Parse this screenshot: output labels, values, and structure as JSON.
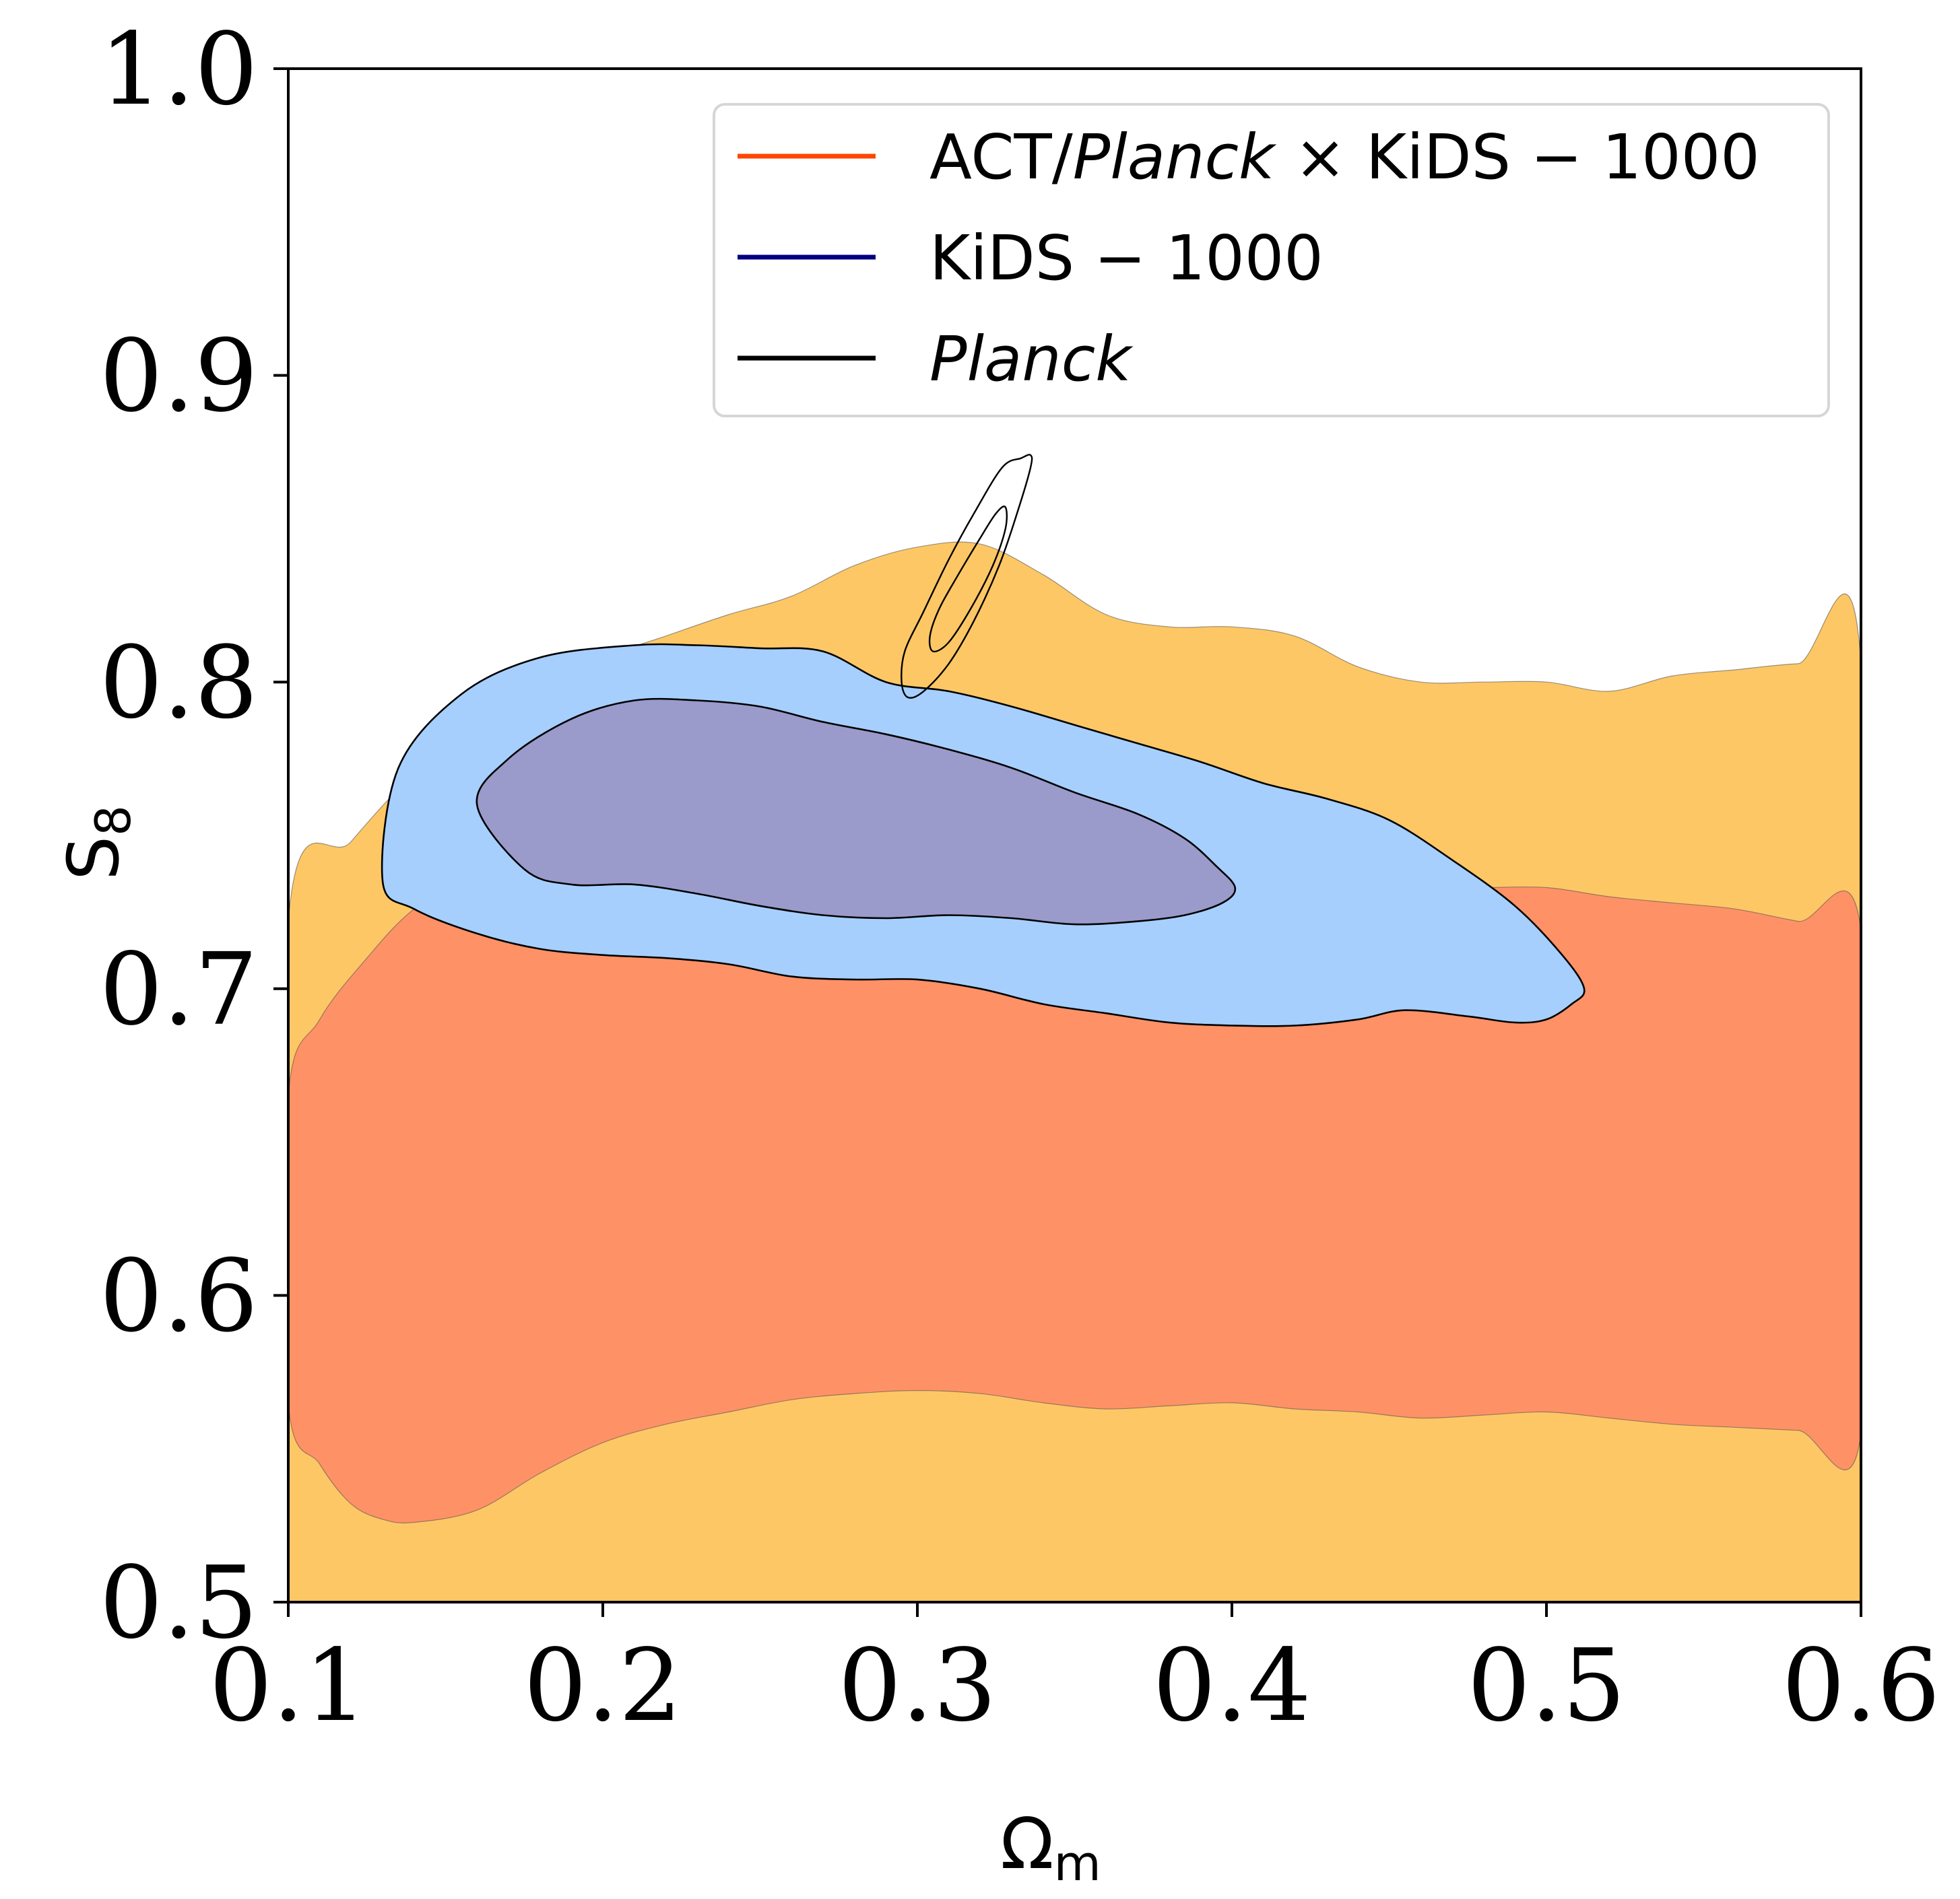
{
  "chart_data": {
    "type": "contour",
    "xlabel_main": "Ω",
    "xlabel_sub": "m",
    "ylabel_main": "S",
    "ylabel_sub": "8",
    "xlim": [
      0.1,
      0.6
    ],
    "ylim": [
      0.5,
      1.0
    ],
    "xticks": [
      "0.1",
      "0.2",
      "0.3",
      "0.4",
      "0.5",
      "0.6"
    ],
    "yticks": [
      "0.5",
      "0.6",
      "0.7",
      "0.8",
      "0.9",
      "1.0"
    ],
    "grid": false,
    "legend_position": "top-right",
    "legend": [
      {
        "name_parts": [
          "ACT/",
          "Planck",
          " × KiDS − 1000"
        ],
        "italic_part": 1,
        "color": "#ff4500"
      },
      {
        "name_parts": [
          "KiDS − 1000"
        ],
        "italic_part": -1,
        "color": "#000080"
      },
      {
        "name_parts": [
          "Planck"
        ],
        "italic_part": 0,
        "color": "#000000"
      }
    ],
    "series": [
      {
        "name": "ACT/Planck × KiDS-1000",
        "level": "95%",
        "fill": "#fec765",
        "outline": [
          [
            0.1,
            0.722
          ],
          [
            0.12,
            0.748
          ],
          [
            0.14,
            0.77
          ],
          [
            0.16,
            0.785
          ],
          [
            0.18,
            0.798
          ],
          [
            0.2,
            0.808
          ],
          [
            0.22,
            0.815
          ],
          [
            0.24,
            0.822
          ],
          [
            0.26,
            0.828
          ],
          [
            0.28,
            0.838
          ],
          [
            0.3,
            0.844
          ],
          [
            0.32,
            0.845
          ],
          [
            0.34,
            0.835
          ],
          [
            0.36,
            0.822
          ],
          [
            0.38,
            0.818
          ],
          [
            0.4,
            0.818
          ],
          [
            0.42,
            0.815
          ],
          [
            0.44,
            0.805
          ],
          [
            0.46,
            0.8
          ],
          [
            0.48,
            0.8
          ],
          [
            0.5,
            0.8
          ],
          [
            0.52,
            0.797
          ],
          [
            0.54,
            0.802
          ],
          [
            0.56,
            0.804
          ],
          [
            0.58,
            0.806
          ],
          [
            0.6,
            0.806
          ],
          [
            0.6,
            0.5
          ],
          [
            0.1,
            0.5
          ]
        ]
      },
      {
        "name": "ACT/Planck × KiDS-1000",
        "level": "68%",
        "fill": "#ff9166",
        "outline": [
          [
            0.1,
            0.665
          ],
          [
            0.11,
            0.69
          ],
          [
            0.125,
            0.71
          ],
          [
            0.14,
            0.726
          ],
          [
            0.16,
            0.738
          ],
          [
            0.18,
            0.742
          ],
          [
            0.2,
            0.74
          ],
          [
            0.22,
            0.742
          ],
          [
            0.24,
            0.748
          ],
          [
            0.26,
            0.752
          ],
          [
            0.28,
            0.755
          ],
          [
            0.3,
            0.757
          ],
          [
            0.32,
            0.756
          ],
          [
            0.34,
            0.752
          ],
          [
            0.36,
            0.75
          ],
          [
            0.38,
            0.748
          ],
          [
            0.4,
            0.745
          ],
          [
            0.42,
            0.738
          ],
          [
            0.44,
            0.733
          ],
          [
            0.46,
            0.733
          ],
          [
            0.48,
            0.733
          ],
          [
            0.5,
            0.733
          ],
          [
            0.52,
            0.73
          ],
          [
            0.54,
            0.728
          ],
          [
            0.56,
            0.726
          ],
          [
            0.58,
            0.722
          ],
          [
            0.6,
            0.719
          ],
          [
            0.6,
            0.555
          ],
          [
            0.58,
            0.556
          ],
          [
            0.56,
            0.557
          ],
          [
            0.54,
            0.558
          ],
          [
            0.52,
            0.56
          ],
          [
            0.5,
            0.562
          ],
          [
            0.48,
            0.561
          ],
          [
            0.46,
            0.56
          ],
          [
            0.44,
            0.562
          ],
          [
            0.42,
            0.563
          ],
          [
            0.4,
            0.565
          ],
          [
            0.38,
            0.564
          ],
          [
            0.36,
            0.563
          ],
          [
            0.34,
            0.565
          ],
          [
            0.32,
            0.568
          ],
          [
            0.3,
            0.569
          ],
          [
            0.28,
            0.568
          ],
          [
            0.26,
            0.566
          ],
          [
            0.24,
            0.562
          ],
          [
            0.22,
            0.558
          ],
          [
            0.2,
            0.552
          ],
          [
            0.18,
            0.542
          ],
          [
            0.16,
            0.53
          ],
          [
            0.14,
            0.526
          ],
          [
            0.13,
            0.527
          ],
          [
            0.12,
            0.532
          ],
          [
            0.11,
            0.545
          ],
          [
            0.1,
            0.565
          ]
        ]
      },
      {
        "name": "KiDS-1000",
        "level": "95%",
        "fill": "#a6cffd",
        "outline": [
          [
            0.13,
            0.735
          ],
          [
            0.135,
            0.772
          ],
          [
            0.155,
            0.796
          ],
          [
            0.18,
            0.808
          ],
          [
            0.21,
            0.812
          ],
          [
            0.23,
            0.812
          ],
          [
            0.25,
            0.811
          ],
          [
            0.27,
            0.81
          ],
          [
            0.29,
            0.8
          ],
          [
            0.31,
            0.797
          ],
          [
            0.33,
            0.792
          ],
          [
            0.35,
            0.786
          ],
          [
            0.37,
            0.78
          ],
          [
            0.39,
            0.774
          ],
          [
            0.41,
            0.767
          ],
          [
            0.43,
            0.762
          ],
          [
            0.45,
            0.755
          ],
          [
            0.47,
            0.742
          ],
          [
            0.49,
            0.727
          ],
          [
            0.505,
            0.711
          ],
          [
            0.512,
            0.7
          ],
          [
            0.508,
            0.695
          ],
          [
            0.5,
            0.69
          ],
          [
            0.49,
            0.689
          ],
          [
            0.475,
            0.691
          ],
          [
            0.455,
            0.693
          ],
          [
            0.44,
            0.69
          ],
          [
            0.42,
            0.688
          ],
          [
            0.4,
            0.688
          ],
          [
            0.38,
            0.689
          ],
          [
            0.36,
            0.692
          ],
          [
            0.34,
            0.695
          ],
          [
            0.32,
            0.7
          ],
          [
            0.3,
            0.703
          ],
          [
            0.28,
            0.703
          ],
          [
            0.26,
            0.704
          ],
          [
            0.24,
            0.708
          ],
          [
            0.22,
            0.71
          ],
          [
            0.2,
            0.711
          ],
          [
            0.18,
            0.713
          ],
          [
            0.16,
            0.718
          ],
          [
            0.14,
            0.726
          ]
        ]
      },
      {
        "name": "KiDS-1000",
        "level": "68%",
        "fill": "#9a9acb",
        "outline": [
          [
            0.16,
            0.76
          ],
          [
            0.17,
            0.775
          ],
          [
            0.19,
            0.788
          ],
          [
            0.21,
            0.794
          ],
          [
            0.23,
            0.794
          ],
          [
            0.25,
            0.792
          ],
          [
            0.27,
            0.787
          ],
          [
            0.29,
            0.783
          ],
          [
            0.31,
            0.778
          ],
          [
            0.33,
            0.772
          ],
          [
            0.35,
            0.764
          ],
          [
            0.37,
            0.757
          ],
          [
            0.385,
            0.749
          ],
          [
            0.395,
            0.74
          ],
          [
            0.401,
            0.733
          ],
          [
            0.397,
            0.728
          ],
          [
            0.385,
            0.724
          ],
          [
            0.37,
            0.722
          ],
          [
            0.35,
            0.721
          ],
          [
            0.33,
            0.723
          ],
          [
            0.31,
            0.724
          ],
          [
            0.29,
            0.723
          ],
          [
            0.27,
            0.724
          ],
          [
            0.25,
            0.727
          ],
          [
            0.23,
            0.731
          ],
          [
            0.21,
            0.734
          ],
          [
            0.19,
            0.734
          ],
          [
            0.175,
            0.739
          ]
        ]
      },
      {
        "name": "Planck",
        "level": "95%",
        "fill": "none",
        "outline": [
          [
            0.295,
            0.8
          ],
          [
            0.297,
            0.795
          ],
          [
            0.302,
            0.797
          ],
          [
            0.31,
            0.806
          ],
          [
            0.318,
            0.82
          ],
          [
            0.326,
            0.838
          ],
          [
            0.332,
            0.856
          ],
          [
            0.336,
            0.87
          ],
          [
            0.336,
            0.874
          ],
          [
            0.333,
            0.873
          ],
          [
            0.327,
            0.87
          ],
          [
            0.318,
            0.855
          ],
          [
            0.31,
            0.84
          ],
          [
            0.302,
            0.823
          ],
          [
            0.296,
            0.81
          ]
        ]
      },
      {
        "name": "Planck",
        "level": "68%",
        "fill": "none",
        "outline": [
          [
            0.304,
            0.815
          ],
          [
            0.305,
            0.81
          ],
          [
            0.31,
            0.813
          ],
          [
            0.317,
            0.824
          ],
          [
            0.324,
            0.838
          ],
          [
            0.328,
            0.85
          ],
          [
            0.328,
            0.857
          ],
          [
            0.325,
            0.855
          ],
          [
            0.32,
            0.847
          ],
          [
            0.313,
            0.835
          ],
          [
            0.307,
            0.824
          ]
        ]
      }
    ]
  }
}
